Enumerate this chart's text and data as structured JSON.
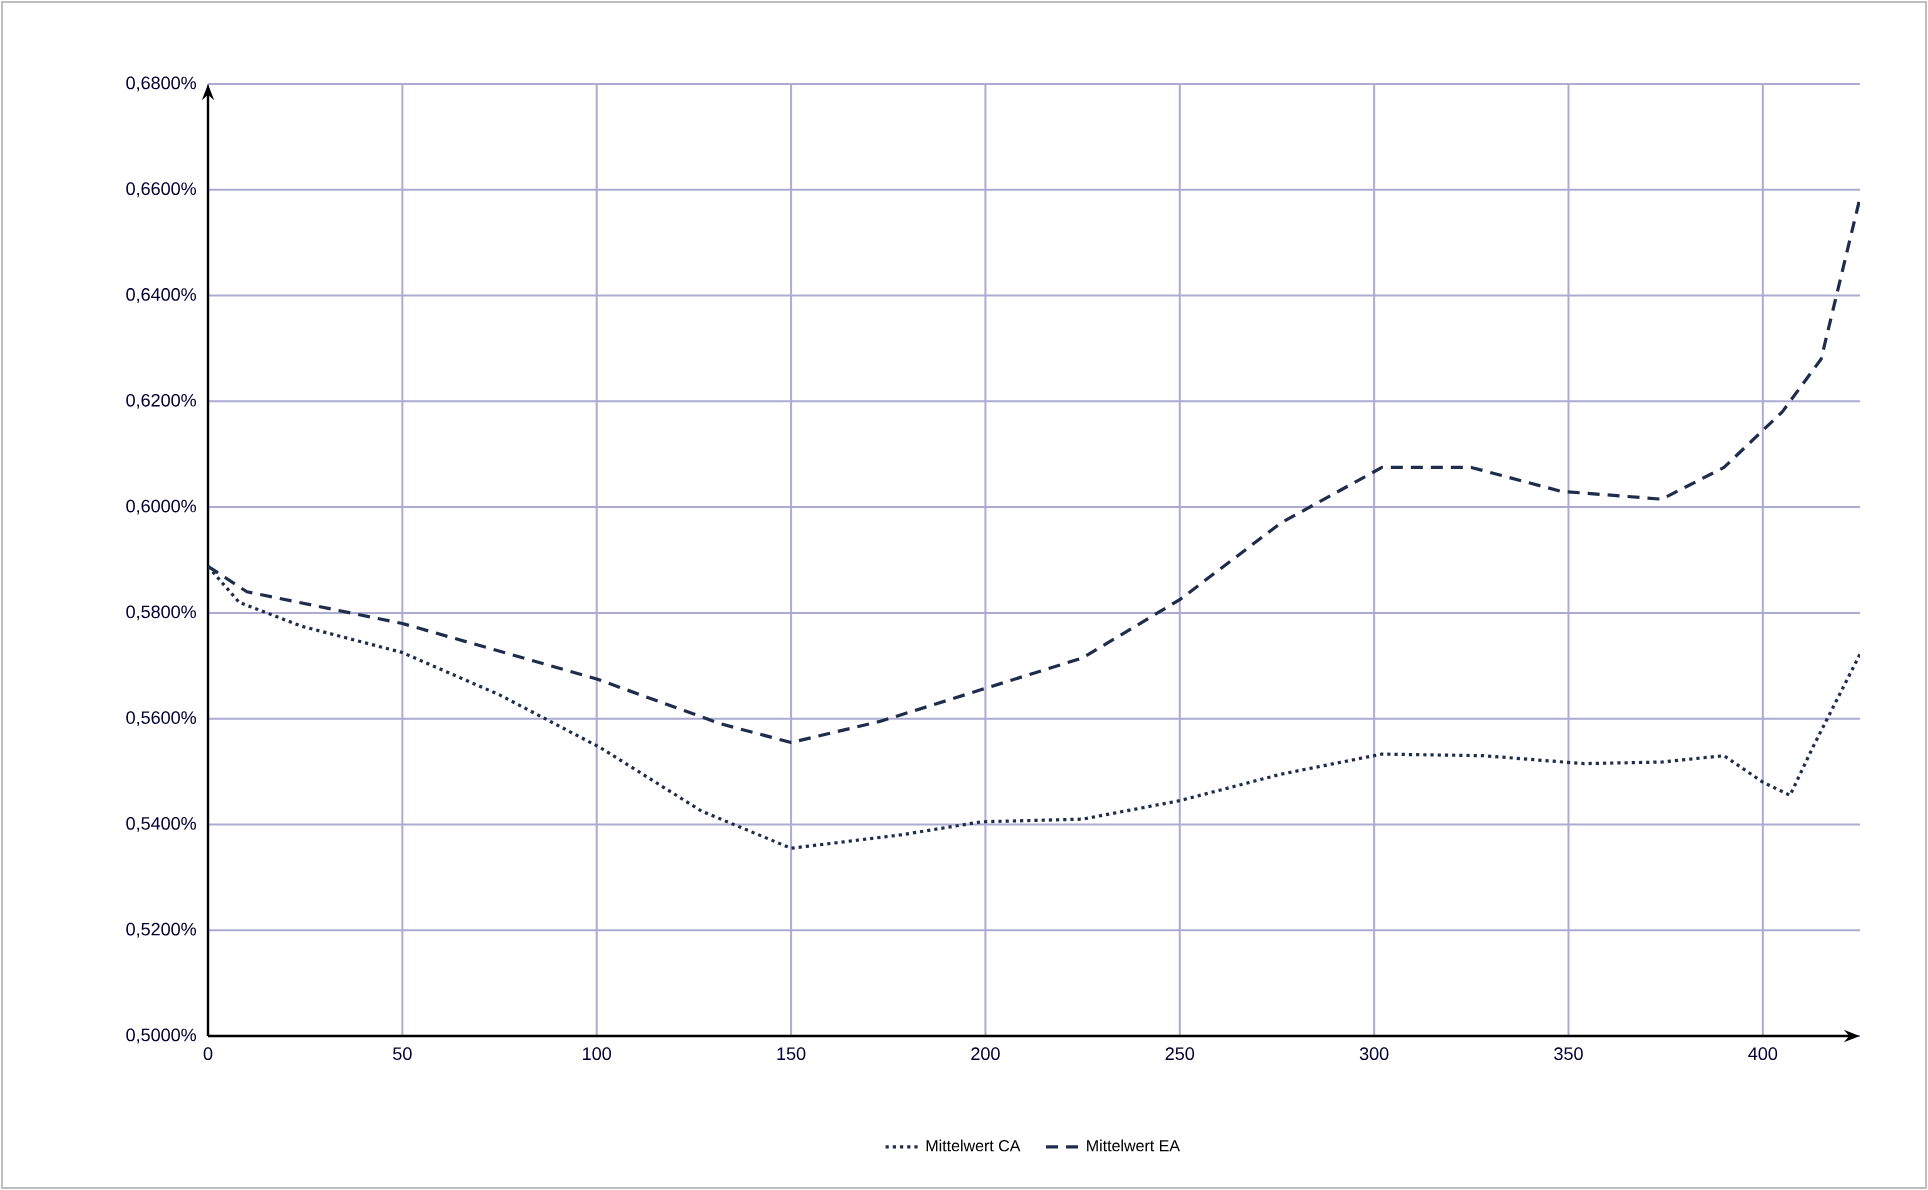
{
  "chart_data": {
    "type": "line",
    "xlim": [
      0,
      425
    ],
    "ylim": [
      0.5,
      0.68
    ],
    "xticks": [
      0,
      50,
      100,
      150,
      200,
      250,
      300,
      350,
      400
    ],
    "yticks": [
      {
        "value": 0.5,
        "label": "0,5000%"
      },
      {
        "value": 0.52,
        "label": "0,5200%"
      },
      {
        "value": 0.54,
        "label": "0,5400%"
      },
      {
        "value": 0.56,
        "label": "0,5600%"
      },
      {
        "value": 0.58,
        "label": "0,5800%"
      },
      {
        "value": 0.6,
        "label": "0,6000%"
      },
      {
        "value": 0.62,
        "label": "0,6200%"
      },
      {
        "value": 0.64,
        "label": "0,6400%"
      },
      {
        "value": 0.66,
        "label": "0,6600%"
      },
      {
        "value": 0.68,
        "label": "0,6800%"
      }
    ],
    "grid": true,
    "legend": "bottom",
    "marker": "none",
    "series": [
      {
        "name": "Mittelwert CA",
        "color": "#1f2d4d",
        "line_style": "dotted",
        "x": [
          0,
          8,
          24,
          50,
          75,
          101,
          127,
          150,
          178,
          199,
          225,
          250,
          276,
          302,
          328,
          354,
          374,
          390,
          400,
          407,
          413,
          425
        ],
        "values": [
          0.5888,
          0.582,
          0.5775,
          0.5725,
          0.5645,
          0.5545,
          0.5425,
          0.5355,
          0.538,
          0.5405,
          0.541,
          0.5445,
          0.5495,
          0.5533,
          0.553,
          0.5515,
          0.5518,
          0.553,
          0.548,
          0.5455,
          0.5548,
          0.5722
        ]
      },
      {
        "name": "Mittelwert EA",
        "color": "#1f2d4d",
        "line_style": "dashed",
        "x": [
          0,
          10,
          50,
          100,
          132,
          150,
          173,
          199,
          225,
          250,
          276,
          302,
          325,
          348,
          374,
          390,
          405,
          415,
          425
        ],
        "values": [
          0.5888,
          0.584,
          0.578,
          0.5675,
          0.559,
          0.5555,
          0.5595,
          0.5655,
          0.5715,
          0.5825,
          0.597,
          0.6075,
          0.6075,
          0.603,
          0.6015,
          0.6075,
          0.618,
          0.628,
          0.6585
        ]
      }
    ]
  }
}
